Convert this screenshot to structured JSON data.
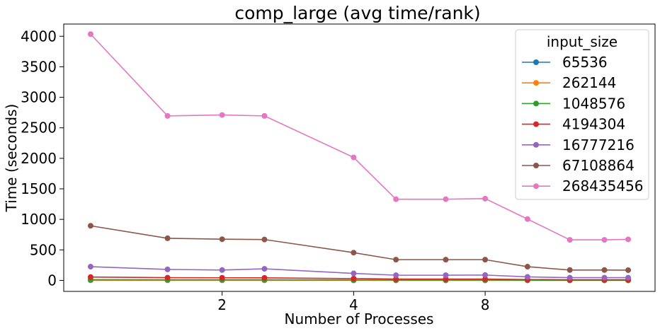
{
  "chart_data": {
    "type": "line",
    "title": "comp_large (avg time/rank)",
    "xlabel": "Number of Processes",
    "ylabel": "Time (seconds)",
    "x_scale": "log2",
    "x": [
      1,
      1.5,
      2,
      2.5,
      4,
      5,
      6.5,
      8,
      10,
      12.5,
      15,
      17
    ],
    "x_ticks": [
      {
        "value": 2,
        "label": "2"
      },
      {
        "value": 4,
        "label": "4"
      },
      {
        "value": 8,
        "label": "8"
      }
    ],
    "ylim": [
      -180,
      4200
    ],
    "y_ticks": [
      {
        "value": 0,
        "label": "0"
      },
      {
        "value": 500,
        "label": "500"
      },
      {
        "value": 1000,
        "label": "1000"
      },
      {
        "value": 1500,
        "label": "1500"
      },
      {
        "value": 2000,
        "label": "2000"
      },
      {
        "value": 2500,
        "label": "2500"
      },
      {
        "value": 3000,
        "label": "3000"
      },
      {
        "value": 3500,
        "label": "3500"
      },
      {
        "value": 4000,
        "label": "4000"
      }
    ],
    "grid": false,
    "legend": {
      "title": "input_size",
      "position": "top-right"
    },
    "series": [
      {
        "name": "65536",
        "color": "#1f77b4",
        "values": [
          2,
          2,
          2,
          2,
          1,
          1,
          1,
          1,
          1,
          1,
          1,
          1
        ]
      },
      {
        "name": "262144",
        "color": "#ff7f0e",
        "values": [
          5,
          4,
          4,
          4,
          3,
          2,
          2,
          2,
          2,
          1,
          1,
          1
        ]
      },
      {
        "name": "1048576",
        "color": "#2ca02c",
        "values": [
          12,
          10,
          10,
          10,
          7,
          6,
          6,
          6,
          4,
          3,
          3,
          3
        ]
      },
      {
        "name": "4194304",
        "color": "#d62728",
        "values": [
          55,
          45,
          43,
          42,
          30,
          22,
          22,
          22,
          14,
          10,
          10,
          10
        ]
      },
      {
        "name": "16777216",
        "color": "#9467bd",
        "values": [
          225,
          180,
          170,
          190,
          115,
          85,
          85,
          88,
          58,
          45,
          45,
          45
        ]
      },
      {
        "name": "67108864",
        "color": "#8c564b",
        "values": [
          895,
          690,
          675,
          670,
          455,
          340,
          340,
          340,
          225,
          170,
          170,
          168
        ]
      },
      {
        "name": "268435456",
        "color": "#e377c2",
        "values": [
          4035,
          2695,
          2710,
          2695,
          2015,
          1330,
          1330,
          1340,
          1005,
          665,
          665,
          672
        ]
      }
    ]
  }
}
